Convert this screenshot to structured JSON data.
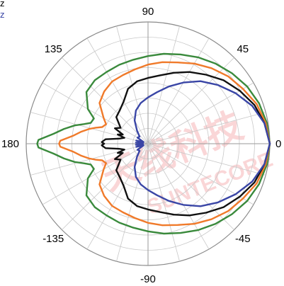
{
  "legend": [
    {
      "text": "z",
      "color": "#000000"
    },
    {
      "text": "z",
      "color": "#3a46a6"
    }
  ],
  "watermark": {
    "cn": "天线科技",
    "en": "SUNTECORE",
    "color": "#e8202a"
  },
  "chart_data": {
    "type": "polar",
    "angle_unit": "deg",
    "angle_ticks": [
      "90",
      "45",
      "0",
      "-45",
      "-90",
      "-135",
      "180",
      "135"
    ],
    "angle_tick_values": [
      90,
      45,
      0,
      -45,
      -90,
      -135,
      180,
      135
    ],
    "angular_grid_step_deg": 15,
    "radial_rings": 8,
    "radial_range": [
      0,
      1
    ],
    "grid": true,
    "series": [
      {
        "color": "#3a8a3c",
        "angles": [
          0,
          10,
          20,
          30,
          40,
          50,
          60,
          70,
          80,
          90,
          100,
          110,
          120,
          130,
          140,
          150,
          155,
          160,
          163,
          166,
          170,
          174,
          178,
          180,
          -178,
          -174,
          -170,
          -166,
          -163,
          -160,
          -155,
          -150,
          -140,
          -130,
          -120,
          -110,
          -100,
          -90,
          -80,
          -70,
          -60,
          -50,
          -40,
          -30,
          -20,
          -10
        ],
        "values": [
          1.0,
          0.99,
          0.97,
          0.94,
          0.9,
          0.86,
          0.82,
          0.78,
          0.75,
          0.72,
          0.7,
          0.69,
          0.68,
          0.68,
          0.66,
          0.57,
          0.49,
          0.5,
          0.55,
          0.62,
          0.7,
          0.78,
          0.9,
          0.91,
          0.9,
          0.78,
          0.7,
          0.62,
          0.55,
          0.5,
          0.49,
          0.57,
          0.66,
          0.68,
          0.68,
          0.69,
          0.7,
          0.72,
          0.75,
          0.78,
          0.82,
          0.86,
          0.9,
          0.94,
          0.97,
          0.99
        ]
      },
      {
        "color": "#f07a2a",
        "angles": [
          0,
          10,
          20,
          30,
          40,
          50,
          60,
          70,
          80,
          90,
          100,
          110,
          120,
          130,
          140,
          150,
          155,
          160,
          163,
          166,
          170,
          174,
          178,
          180,
          -178,
          -174,
          -170,
          -166,
          -163,
          -160,
          -155,
          -150,
          -140,
          -130,
          -120,
          -110,
          -100,
          -90,
          -80,
          -70,
          -60,
          -50,
          -40,
          -30,
          -20,
          -10
        ],
        "values": [
          1.0,
          0.98,
          0.95,
          0.9,
          0.86,
          0.81,
          0.76,
          0.71,
          0.68,
          0.65,
          0.62,
          0.6,
          0.59,
          0.56,
          0.52,
          0.42,
          0.38,
          0.4,
          0.45,
          0.5,
          0.56,
          0.62,
          0.72,
          0.73,
          0.72,
          0.62,
          0.56,
          0.5,
          0.45,
          0.4,
          0.38,
          0.42,
          0.52,
          0.56,
          0.59,
          0.6,
          0.62,
          0.65,
          0.68,
          0.71,
          0.76,
          0.81,
          0.86,
          0.9,
          0.95,
          0.98
        ]
      },
      {
        "color": "#111111",
        "angles": [
          0,
          10,
          20,
          30,
          40,
          50,
          60,
          70,
          80,
          90,
          100,
          110,
          120,
          130,
          140,
          150,
          155,
          160,
          163,
          166,
          170,
          174,
          178,
          180,
          -178,
          -174,
          -170,
          -166,
          -163,
          -160,
          -155,
          -150,
          -140,
          -130,
          -120,
          -110,
          -100,
          -90,
          -80,
          -70,
          -60,
          -50,
          -40,
          -30,
          -20,
          -10
        ],
        "values": [
          1.0,
          0.97,
          0.93,
          0.87,
          0.81,
          0.74,
          0.68,
          0.62,
          0.57,
          0.54,
          0.52,
          0.48,
          0.4,
          0.36,
          0.34,
          0.26,
          0.3,
          0.22,
          0.26,
          0.2,
          0.24,
          0.35,
          0.38,
          0.36,
          0.38,
          0.35,
          0.24,
          0.2,
          0.26,
          0.22,
          0.3,
          0.26,
          0.34,
          0.36,
          0.4,
          0.48,
          0.52,
          0.54,
          0.57,
          0.62,
          0.68,
          0.74,
          0.81,
          0.87,
          0.93,
          0.97
        ]
      },
      {
        "color": "#3a46a6",
        "angles": [
          0,
          10,
          20,
          30,
          40,
          50,
          60,
          70,
          80,
          90,
          100,
          110,
          120,
          130,
          140,
          150,
          160,
          165,
          170,
          175,
          180,
          -175,
          -170,
          -165,
          -160,
          -150,
          -140,
          -130,
          -120,
          -110,
          -100,
          -90,
          -80,
          -70,
          -60,
          -50,
          -40,
          -30,
          -20,
          -10
        ],
        "values": [
          1.0,
          0.97,
          0.91,
          0.83,
          0.75,
          0.67,
          0.58,
          0.5,
          0.43,
          0.38,
          0.34,
          0.29,
          0.22,
          0.14,
          0.09,
          0.1,
          0.04,
          0.1,
          0.04,
          0.1,
          0.05,
          0.1,
          0.04,
          0.1,
          0.04,
          0.1,
          0.09,
          0.14,
          0.22,
          0.29,
          0.34,
          0.38,
          0.43,
          0.5,
          0.58,
          0.67,
          0.75,
          0.83,
          0.91,
          0.97
        ]
      }
    ]
  }
}
